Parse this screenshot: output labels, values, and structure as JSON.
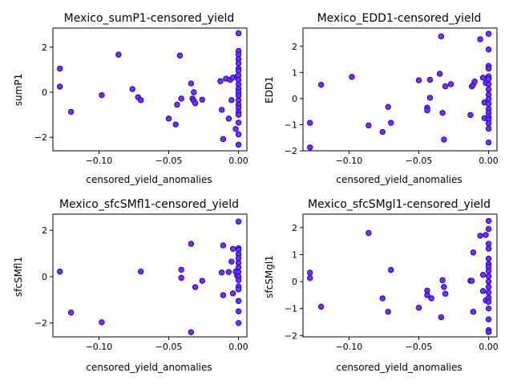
{
  "chart_data": [
    {
      "type": "scatter",
      "title": "Mexico_sumP1-censored_yield",
      "xlabel": "censored_yield_anomalies",
      "ylabel": "sumP1",
      "xlim": [
        -0.133,
        0.006
      ],
      "ylim": [
        -2.6,
        2.85
      ],
      "xticks": [
        -0.1,
        -0.05,
        0.0
      ],
      "xtick_labels": [
        "−0.10",
        "−0.05",
        "0.00"
      ],
      "yticks": [
        -2,
        0,
        2
      ],
      "ytick_labels": [
        "−2",
        "0",
        "2"
      ],
      "marker_fill": "#8a2be2",
      "marker_edge": "#0000ff",
      "grid": false,
      "points": [
        [
          -0.128,
          1.05
        ],
        [
          -0.128,
          0.25
        ],
        [
          -0.12,
          -0.87
        ],
        [
          -0.098,
          -0.13
        ],
        [
          -0.086,
          1.67
        ],
        [
          -0.076,
          0.14
        ],
        [
          -0.072,
          -0.22
        ],
        [
          -0.07,
          -0.35
        ],
        [
          -0.05,
          -1.17
        ],
        [
          -0.045,
          -1.43
        ],
        [
          -0.044,
          -0.55
        ],
        [
          -0.042,
          1.63
        ],
        [
          -0.041,
          -0.28
        ],
        [
          -0.034,
          0.39
        ],
        [
          -0.033,
          -0.28
        ],
        [
          -0.032,
          -0.38
        ],
        [
          -0.032,
          0.0
        ],
        [
          -0.031,
          -0.49
        ],
        [
          -0.026,
          -0.33
        ],
        [
          -0.013,
          0.49
        ],
        [
          -0.012,
          -0.78
        ],
        [
          -0.011,
          -2.08
        ],
        [
          -0.009,
          0.6
        ],
        [
          -0.007,
          -1.17
        ],
        [
          -0.006,
          0.55
        ],
        [
          -0.005,
          -0.35
        ],
        [
          -0.004,
          0.65
        ],
        [
          -0.002,
          -1.63
        ],
        [
          -0.001,
          0.7
        ],
        [
          0.0,
          2.62
        ],
        [
          0.0,
          1.83
        ],
        [
          0.0,
          1.67
        ],
        [
          0.0,
          1.47
        ],
        [
          0.0,
          1.28
        ],
        [
          0.0,
          1.05
        ],
        [
          0.0,
          0.95
        ],
        [
          0.0,
          0.75
        ],
        [
          0.0,
          0.55
        ],
        [
          0.0,
          0.35
        ],
        [
          0.0,
          0.15
        ],
        [
          0.0,
          0.0
        ],
        [
          0.0,
          -0.15
        ],
        [
          0.0,
          -0.35
        ],
        [
          0.0,
          -0.55
        ],
        [
          0.0,
          -0.7
        ],
        [
          0.0,
          -0.88
        ],
        [
          0.0,
          -1.0
        ],
        [
          0.0,
          -1.35
        ],
        [
          0.0,
          -1.87
        ],
        [
          0.0,
          -2.33
        ]
      ]
    },
    {
      "type": "scatter",
      "title": "Mexico_EDD1-censored_yield",
      "xlabel": "censored_yield_anomalies",
      "ylabel": "EDD1",
      "xlim": [
        -0.133,
        0.006
      ],
      "ylim": [
        -2.0,
        2.7
      ],
      "xticks": [
        -0.1,
        -0.05,
        0.0
      ],
      "xtick_labels": [
        "−0.10",
        "−0.05",
        "0.00"
      ],
      "yticks": [
        -2,
        -1,
        0,
        1,
        2
      ],
      "ytick_labels": [
        "−2",
        "−1",
        "0",
        "1",
        "2"
      ],
      "marker_fill": "#8a2be2",
      "marker_edge": "#0000ff",
      "grid": false,
      "points": [
        [
          -0.128,
          -0.93
        ],
        [
          -0.128,
          -1.87
        ],
        [
          -0.12,
          0.53
        ],
        [
          -0.098,
          0.83
        ],
        [
          -0.086,
          -1.03
        ],
        [
          -0.076,
          -1.28
        ],
        [
          -0.072,
          -0.32
        ],
        [
          -0.07,
          -0.93
        ],
        [
          -0.05,
          0.7
        ],
        [
          -0.044,
          -0.35
        ],
        [
          -0.044,
          -0.45
        ],
        [
          -0.042,
          0.72
        ],
        [
          -0.042,
          0.03
        ],
        [
          -0.035,
          0.95
        ],
        [
          -0.034,
          2.38
        ],
        [
          -0.033,
          -0.55
        ],
        [
          -0.032,
          -1.57
        ],
        [
          -0.031,
          0.47
        ],
        [
          -0.027,
          0.55
        ],
        [
          -0.013,
          -0.63
        ],
        [
          -0.012,
          0.47
        ],
        [
          -0.011,
          0.53
        ],
        [
          -0.01,
          0.65
        ],
        [
          -0.006,
          2.27
        ],
        [
          -0.004,
          0.8
        ],
        [
          -0.003,
          -0.75
        ],
        [
          -0.003,
          -0.15
        ],
        [
          -0.002,
          0.6
        ],
        [
          0.0,
          2.48
        ],
        [
          0.0,
          1.88
        ],
        [
          0.0,
          1.25
        ],
        [
          0.0,
          1.15
        ],
        [
          0.0,
          0.85
        ],
        [
          0.0,
          0.75
        ],
        [
          0.0,
          0.55
        ],
        [
          0.0,
          0.35
        ],
        [
          0.0,
          0.15
        ],
        [
          0.0,
          -0.02
        ],
        [
          0.0,
          -0.2
        ],
        [
          0.0,
          -0.4
        ],
        [
          0.0,
          -0.55
        ],
        [
          0.0,
          -0.7
        ],
        [
          0.0,
          -0.8
        ],
        [
          0.0,
          -0.95
        ],
        [
          0.0,
          -1.15
        ],
        [
          0.0,
          -1.68
        ]
      ]
    },
    {
      "type": "scatter",
      "title": "Mexico_sfcSMfl1-censored_yield",
      "xlabel": "censored_yield_anomalies",
      "ylabel": "sfcSMfl1",
      "xlim": [
        -0.133,
        0.006
      ],
      "ylim": [
        -2.6,
        2.7
      ],
      "xticks": [
        -0.1,
        -0.05,
        0.0
      ],
      "xtick_labels": [
        "−0.10",
        "−0.05",
        "0.00"
      ],
      "yticks": [
        -2,
        0,
        2
      ],
      "ytick_labels": [
        "−2",
        "0",
        "2"
      ],
      "marker_fill": "#8a2be2",
      "marker_edge": "#0000ff",
      "grid": false,
      "points": [
        [
          -0.128,
          0.22
        ],
        [
          -0.12,
          -1.55
        ],
        [
          -0.098,
          -1.97
        ],
        [
          -0.07,
          0.22
        ],
        [
          -0.041,
          0.3
        ],
        [
          -0.041,
          -0.05
        ],
        [
          -0.034,
          1.42
        ],
        [
          -0.034,
          -2.4
        ],
        [
          -0.031,
          -0.45
        ],
        [
          -0.026,
          -0.18
        ],
        [
          -0.012,
          0.18
        ],
        [
          -0.011,
          1.35
        ],
        [
          -0.011,
          -0.8
        ],
        [
          -0.007,
          0.2
        ],
        [
          -0.005,
          0.65
        ],
        [
          -0.004,
          1.2
        ],
        [
          -0.004,
          -0.72
        ],
        [
          -0.002,
          0.22
        ],
        [
          -0.001,
          0.05
        ],
        [
          0.0,
          2.38
        ],
        [
          0.0,
          1.23
        ],
        [
          0.0,
          1.15
        ],
        [
          0.0,
          0.97
        ],
        [
          0.0,
          0.8
        ],
        [
          0.0,
          0.6
        ],
        [
          0.0,
          0.4
        ],
        [
          0.0,
          0.2
        ],
        [
          0.0,
          0.0
        ],
        [
          0.0,
          -0.15
        ],
        [
          0.0,
          -0.42
        ],
        [
          0.0,
          -0.55
        ],
        [
          0.0,
          -1.05
        ],
        [
          0.0,
          -1.5
        ],
        [
          0.0,
          -2.0
        ]
      ]
    },
    {
      "type": "scatter",
      "title": "Mexico_sfcSMgl1-censored_yield",
      "xlabel": "censored_yield_anomalies",
      "ylabel": "sfcSMgl1",
      "xlim": [
        -0.133,
        0.006
      ],
      "ylim": [
        -2.05,
        2.5
      ],
      "xticks": [
        -0.1,
        -0.05,
        0.0
      ],
      "xtick_labels": [
        "−0.10",
        "−0.05",
        "0.00"
      ],
      "yticks": [
        -2,
        -1,
        0,
        1,
        2
      ],
      "ytick_labels": [
        "−2",
        "−1",
        "0",
        "1",
        "2"
      ],
      "marker_fill": "#8a2be2",
      "marker_edge": "#0000ff",
      "grid": false,
      "points": [
        [
          -0.128,
          0.33
        ],
        [
          -0.128,
          0.13
        ],
        [
          -0.12,
          -0.93
        ],
        [
          -0.086,
          1.8
        ],
        [
          -0.076,
          -0.62
        ],
        [
          -0.072,
          -1.12
        ],
        [
          -0.07,
          0.43
        ],
        [
          -0.05,
          -0.97
        ],
        [
          -0.044,
          -0.33
        ],
        [
          -0.044,
          -0.5
        ],
        [
          -0.041,
          -0.62
        ],
        [
          -0.034,
          -1.32
        ],
        [
          -0.033,
          0.05
        ],
        [
          -0.032,
          -0.2
        ],
        [
          -0.031,
          -0.45
        ],
        [
          -0.013,
          0.03
        ],
        [
          -0.012,
          0.03
        ],
        [
          -0.011,
          1.08
        ],
        [
          -0.011,
          -1.12
        ],
        [
          -0.006,
          1.7
        ],
        [
          -0.004,
          0.25
        ],
        [
          -0.004,
          -0.35
        ],
        [
          -0.002,
          -0.7
        ],
        [
          -0.002,
          1.73
        ],
        [
          0.0,
          2.25
        ],
        [
          0.0,
          1.95
        ],
        [
          0.0,
          1.4
        ],
        [
          0.0,
          1.22
        ],
        [
          0.0,
          0.85
        ],
        [
          0.0,
          0.65
        ],
        [
          0.0,
          0.55
        ],
        [
          0.0,
          0.4
        ],
        [
          0.0,
          0.2
        ],
        [
          0.0,
          0.0
        ],
        [
          0.0,
          -0.2
        ],
        [
          0.0,
          -0.4
        ],
        [
          0.0,
          -0.6
        ],
        [
          0.0,
          -0.75
        ],
        [
          0.0,
          -1.0
        ],
        [
          0.0,
          -1.4
        ],
        [
          0.0,
          -1.8
        ],
        [
          0.0,
          -1.87
        ]
      ]
    }
  ]
}
